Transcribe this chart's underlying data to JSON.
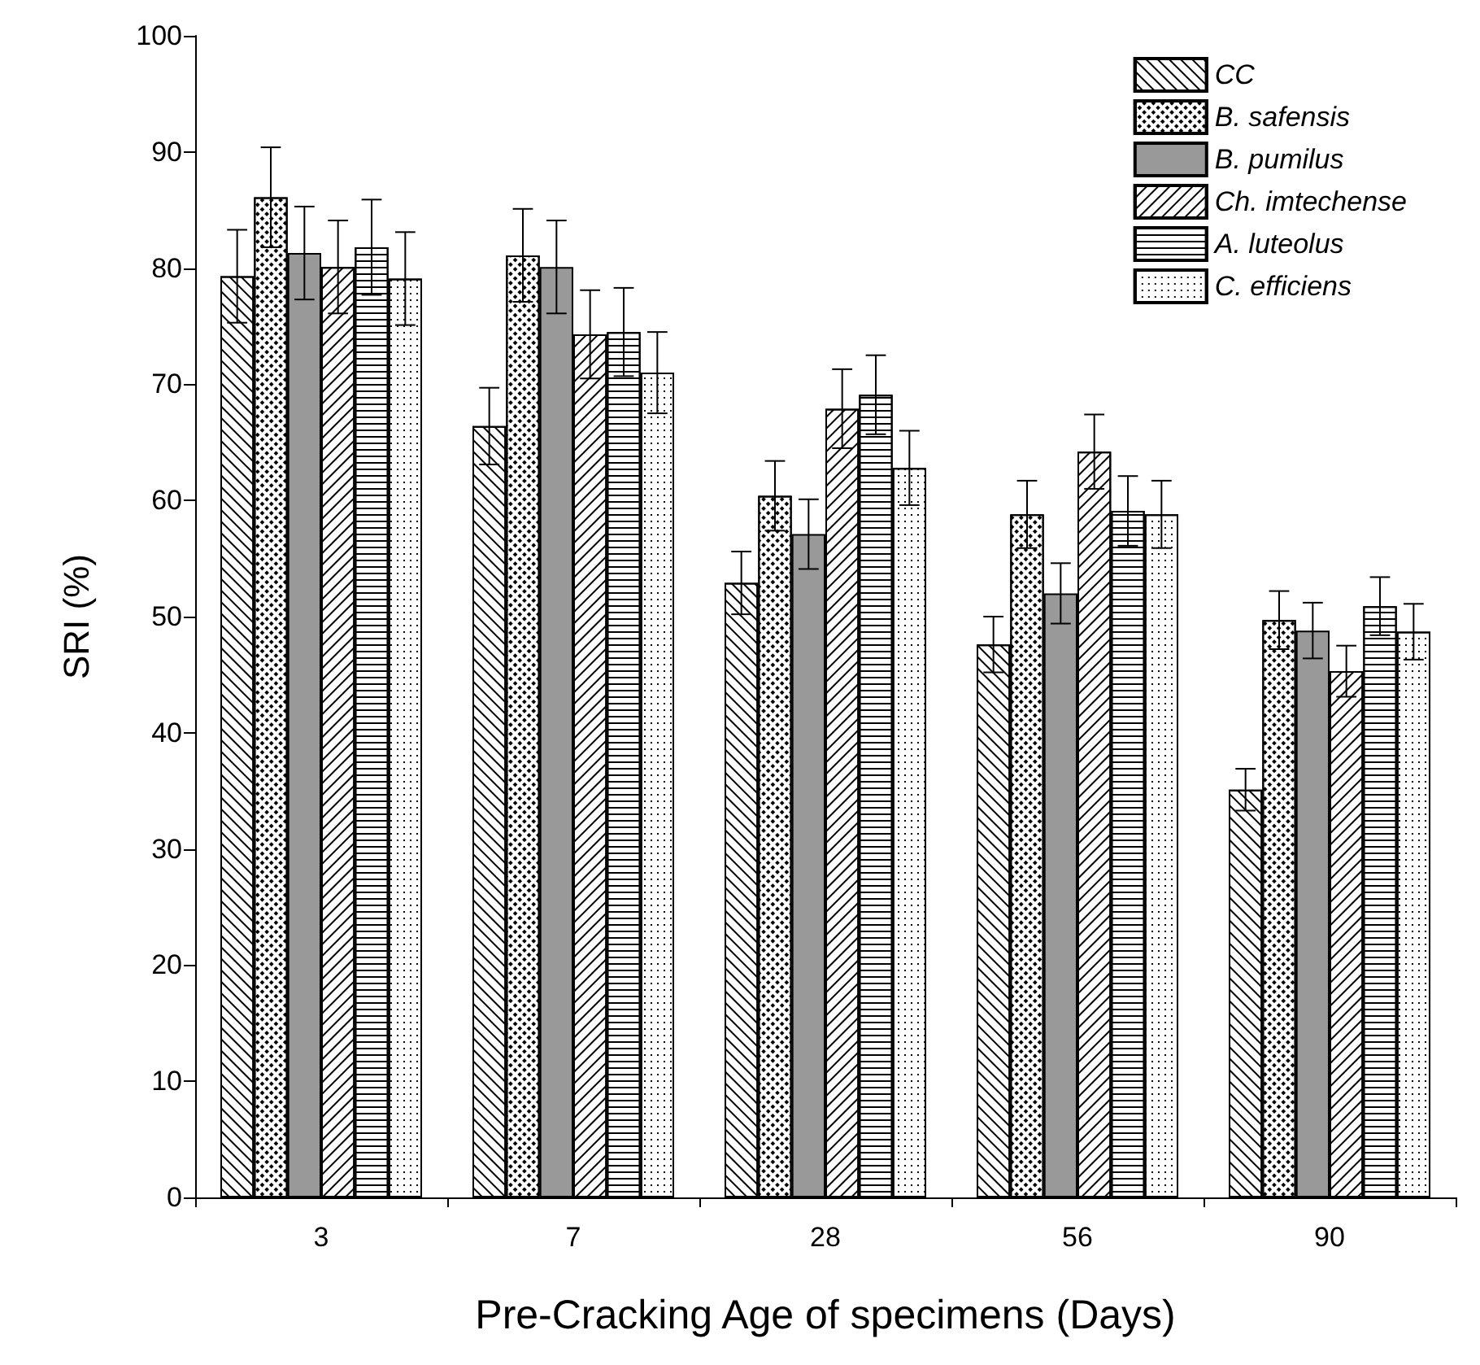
{
  "chart_data": {
    "type": "bar",
    "xlabel": "Pre-Cracking Age of specimens (Days)",
    "ylabel": "SRI (%)",
    "categories": [
      "3",
      "7",
      "28",
      "56",
      "90"
    ],
    "ylim": [
      0,
      100
    ],
    "yticks": [
      0,
      10,
      20,
      30,
      40,
      50,
      60,
      70,
      80,
      90,
      100
    ],
    "grid": false,
    "legend": "top right",
    "series": [
      {
        "name": "CC",
        "color": "#ffffff",
        "values": [
          79.3,
          66.4,
          52.9,
          47.6,
          35.1
        ],
        "errors": [
          4.0,
          3.3,
          2.7,
          2.4,
          1.8
        ]
      },
      {
        "name": "B. safensis",
        "color": "#ffffff",
        "values": [
          86.1,
          81.1,
          60.4,
          58.8,
          49.7
        ],
        "errors": [
          4.3,
          4.0,
          3.0,
          2.9,
          2.5
        ]
      },
      {
        "name": "B. pumilus",
        "color": "#999999",
        "values": [
          81.3,
          80.1,
          57.1,
          52.0,
          48.8
        ],
        "errors": [
          4.0,
          4.0,
          3.0,
          2.6,
          2.4
        ]
      },
      {
        "name": "Ch. imtechense",
        "color": "#ffffff",
        "values": [
          80.1,
          74.3,
          67.9,
          64.2,
          45.3
        ],
        "errors": [
          4.0,
          3.8,
          3.4,
          3.2,
          2.2
        ]
      },
      {
        "name": "A. luteolus",
        "color": "#ffffff",
        "values": [
          81.8,
          74.5,
          69.1,
          59.1,
          50.9
        ],
        "errors": [
          4.1,
          3.8,
          3.4,
          3.0,
          2.5
        ]
      },
      {
        "name": "C. efficiens",
        "color": "#ffffff",
        "values": [
          79.1,
          71.0,
          62.8,
          58.8,
          48.7
        ],
        "errors": [
          4.0,
          3.5,
          3.2,
          2.9,
          2.4
        ]
      }
    ]
  }
}
